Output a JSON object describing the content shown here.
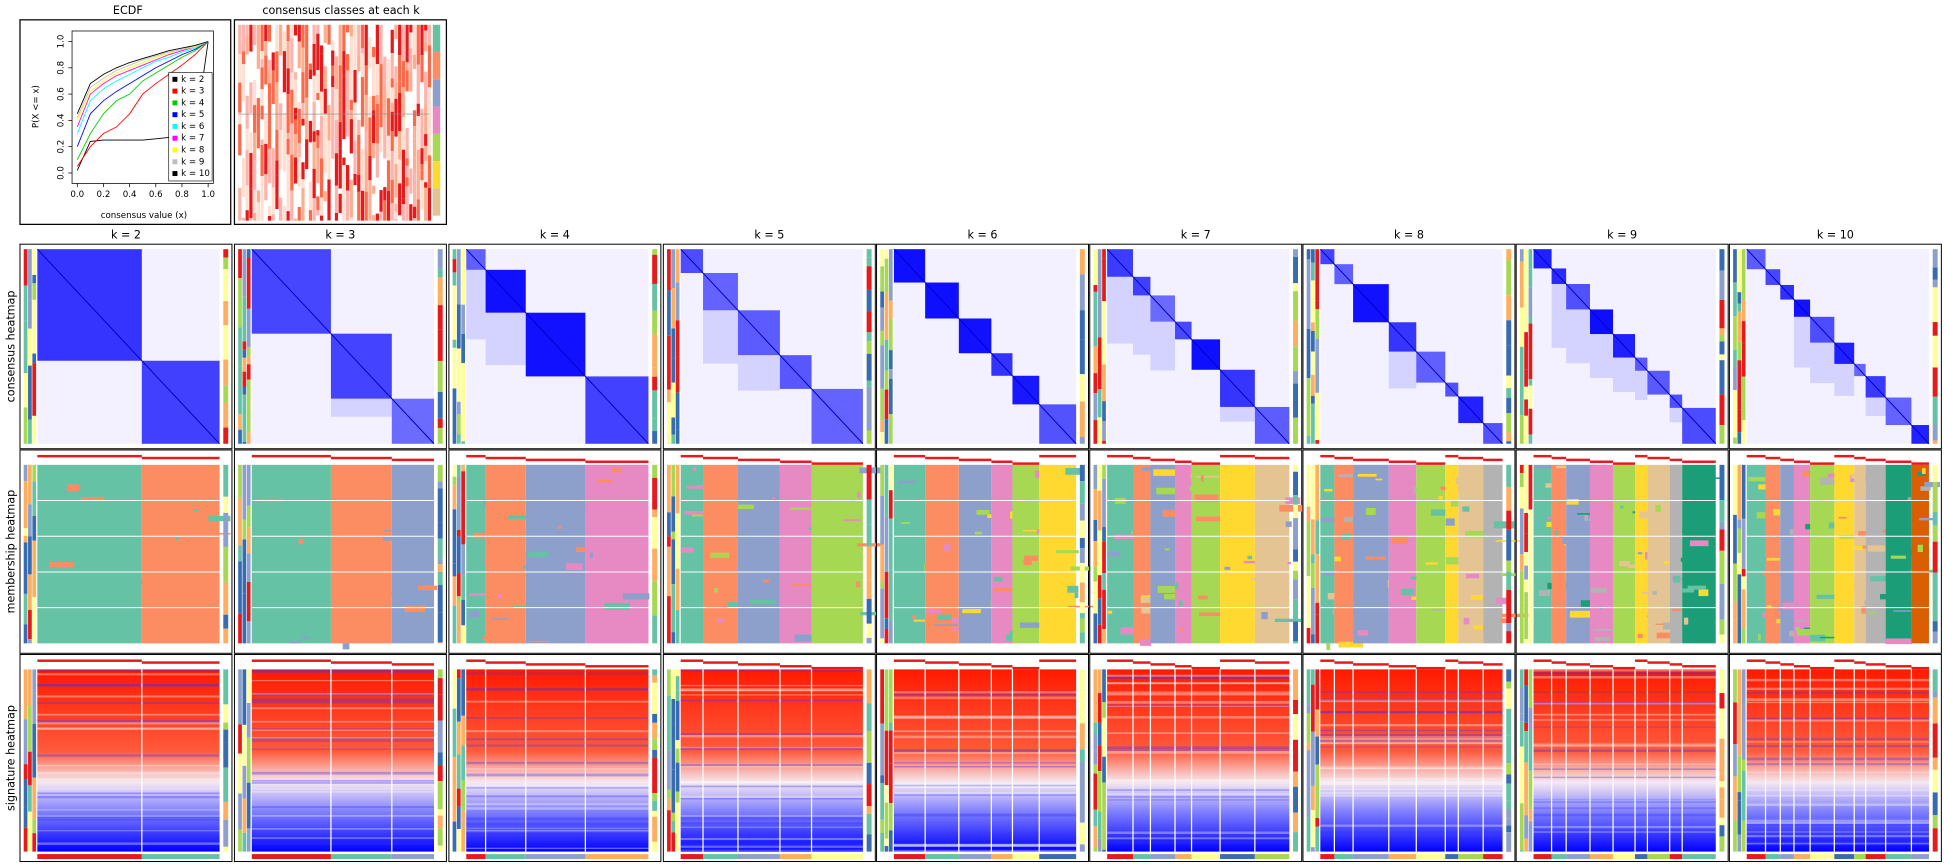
{
  "chart_data": {
    "type": "line",
    "title": "ECDF",
    "x_label": "consensus value (x)",
    "y_label": "P(X <= x)",
    "x": [
      0,
      0.1,
      0.2,
      0.3,
      0.4,
      0.5,
      0.6,
      0.7,
      0.8,
      0.9,
      1
    ],
    "series": [
      {
        "name": "k = 2",
        "color": "#000000",
        "values": [
          0.02,
          0.24,
          0.25,
          0.25,
          0.25,
          0.25,
          0.26,
          0.27,
          0.28,
          0.3,
          1
        ]
      },
      {
        "name": "k = 3",
        "color": "#ff0000",
        "values": [
          0.05,
          0.2,
          0.3,
          0.35,
          0.45,
          0.6,
          0.68,
          0.75,
          0.82,
          0.9,
          1
        ]
      },
      {
        "name": "k = 4",
        "color": "#00cd00",
        "values": [
          0.1,
          0.3,
          0.45,
          0.55,
          0.6,
          0.7,
          0.76,
          0.82,
          0.88,
          0.93,
          1
        ]
      },
      {
        "name": "k = 5",
        "color": "#0000ff",
        "values": [
          0.2,
          0.45,
          0.55,
          0.62,
          0.68,
          0.74,
          0.8,
          0.85,
          0.9,
          0.94,
          1
        ]
      },
      {
        "name": "k = 6",
        "color": "#00ffff",
        "values": [
          0.3,
          0.55,
          0.64,
          0.7,
          0.75,
          0.8,
          0.85,
          0.88,
          0.92,
          0.95,
          1
        ]
      },
      {
        "name": "k = 7",
        "color": "#ff00ff",
        "values": [
          0.35,
          0.6,
          0.68,
          0.74,
          0.78,
          0.82,
          0.86,
          0.9,
          0.93,
          0.96,
          1
        ]
      },
      {
        "name": "k = 8",
        "color": "#ffff00",
        "values": [
          0.4,
          0.62,
          0.7,
          0.76,
          0.8,
          0.84,
          0.88,
          0.91,
          0.94,
          0.96,
          1
        ]
      },
      {
        "name": "k = 9",
        "color": "#bebebe",
        "values": [
          0.42,
          0.65,
          0.72,
          0.78,
          0.82,
          0.86,
          0.89,
          0.92,
          0.94,
          0.97,
          1
        ]
      },
      {
        "name": "k = 10",
        "color": "#000000",
        "values": [
          0.45,
          0.68,
          0.75,
          0.8,
          0.84,
          0.87,
          0.9,
          0.93,
          0.95,
          0.97,
          1
        ]
      }
    ],
    "xlim": [
      -0.04,
      1.04
    ],
    "ylim": [
      -0.08,
      1.08
    ],
    "xticks": [
      {
        "value": 0,
        "label": "0.0"
      },
      {
        "value": 0.2,
        "label": "0.2"
      },
      {
        "value": 0.4,
        "label": "0.4"
      },
      {
        "value": 0.6,
        "label": "0.6"
      },
      {
        "value": 0.8,
        "label": "0.8"
      },
      {
        "value": 1,
        "label": "1.0"
      }
    ],
    "yticks": [
      {
        "value": 0,
        "label": "0.0"
      },
      {
        "value": 0.2,
        "label": "0.2"
      },
      {
        "value": 0.4,
        "label": "0.4"
      },
      {
        "value": 0.6,
        "label": "0.6"
      },
      {
        "value": 0.8,
        "label": "0.8"
      },
      {
        "value": 1,
        "label": "1.0"
      }
    ],
    "legend": "bottom right"
  },
  "panels": {
    "classes_title": "consensus classes at each k",
    "k_titles": [
      "k = 2",
      "k = 3",
      "k = 4",
      "k = 5",
      "k = 6",
      "k = 7",
      "k = 8",
      "k = 9",
      "k = 10"
    ],
    "row_labels": [
      "consensus heatmap",
      "membership heatmap",
      "signature heatmap"
    ]
  }
}
